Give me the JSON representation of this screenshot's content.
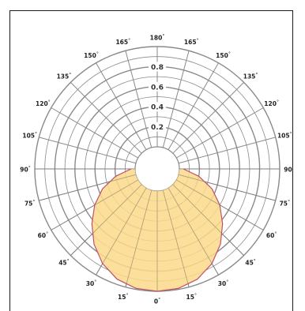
{
  "chart_data": {
    "type": "polar-area",
    "title": "",
    "radial_ticks": [
      "0.2",
      "0.4",
      "0.6",
      "0.8"
    ],
    "radial_max": 1.0,
    "degree_symbol": "°",
    "angle_labels": [
      {
        "text": "0",
        "angle": 0
      },
      {
        "text": "15",
        "angle": 15
      },
      {
        "text": "15",
        "angle": -15
      },
      {
        "text": "30",
        "angle": 30
      },
      {
        "text": "30",
        "angle": -30
      },
      {
        "text": "45",
        "angle": 45
      },
      {
        "text": "45",
        "angle": -45
      },
      {
        "text": "60",
        "angle": 60
      },
      {
        "text": "60",
        "angle": -60
      },
      {
        "text": "75",
        "angle": 75
      },
      {
        "text": "75",
        "angle": -75
      },
      {
        "text": "90",
        "angle": 90
      },
      {
        "text": "90",
        "angle": -90
      },
      {
        "text": "105",
        "angle": 105
      },
      {
        "text": "105",
        "angle": -105
      },
      {
        "text": "120",
        "angle": 120
      },
      {
        "text": "120",
        "angle": -120
      },
      {
        "text": "135",
        "angle": 135
      },
      {
        "text": "135",
        "angle": -135
      },
      {
        "text": "150",
        "angle": 150
      },
      {
        "text": "150",
        "angle": -150
      },
      {
        "text": "165",
        "angle": 165
      },
      {
        "text": "165",
        "angle": -165
      },
      {
        "text": "180",
        "angle": 180
      }
    ],
    "series": [
      {
        "angles_deg": [
          0,
          10,
          20,
          30,
          40,
          50,
          60,
          70,
          80,
          90
        ],
        "values": [
          1.0,
          0.99,
          0.95,
          0.87,
          0.76,
          0.63,
          0.5,
          0.36,
          0.2,
          0.04
        ],
        "fill_color": "#fbd98a",
        "line_color": "#c0506a"
      }
    ],
    "grid": true,
    "grid_color": "#8a8a8a"
  }
}
